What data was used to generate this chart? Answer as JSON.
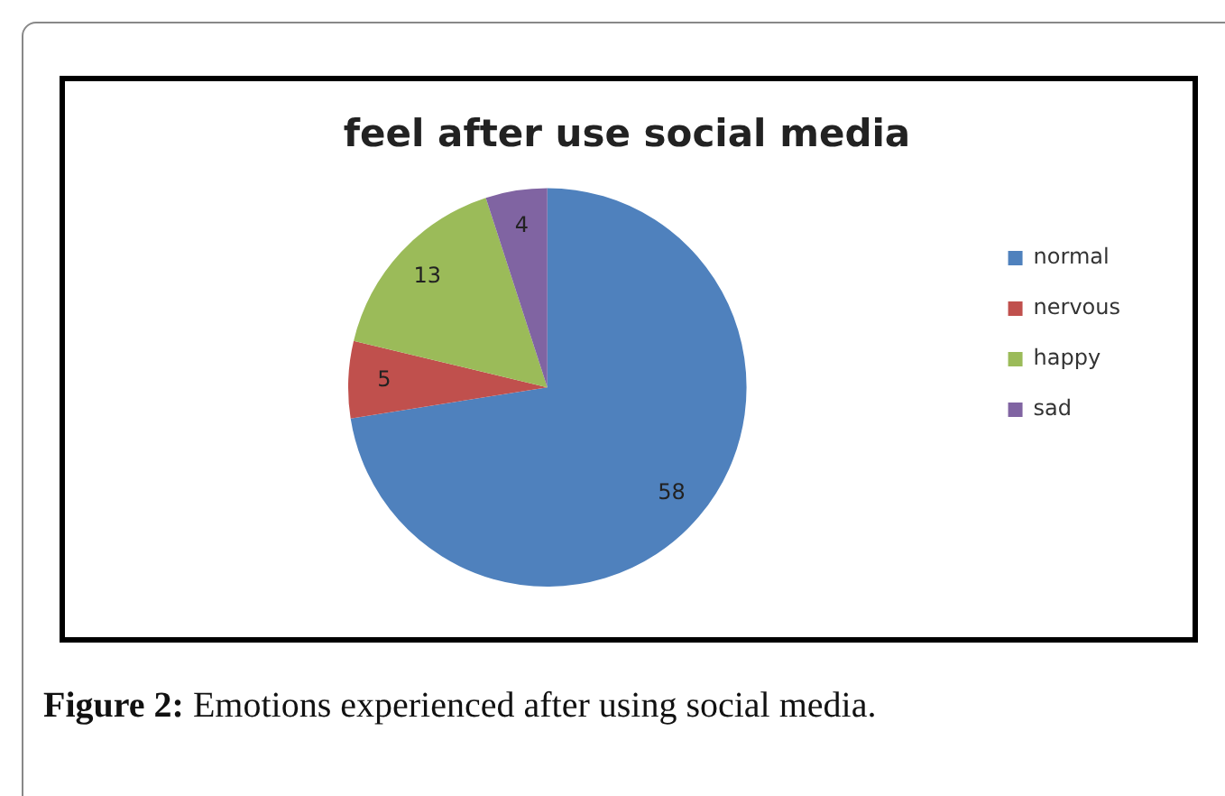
{
  "chart_data": {
    "type": "pie",
    "title": "feel after use social media",
    "categories": [
      "normal",
      "nervous",
      "happy",
      "sad"
    ],
    "values": [
      58,
      5,
      13,
      4
    ],
    "colors": [
      "#4f81bd",
      "#c0504d",
      "#9bbb59",
      "#8064a2"
    ],
    "data_labels": true,
    "legend": "right",
    "annotations": [
      "Figure 2: Emotions experienced after using social media."
    ]
  }
}
